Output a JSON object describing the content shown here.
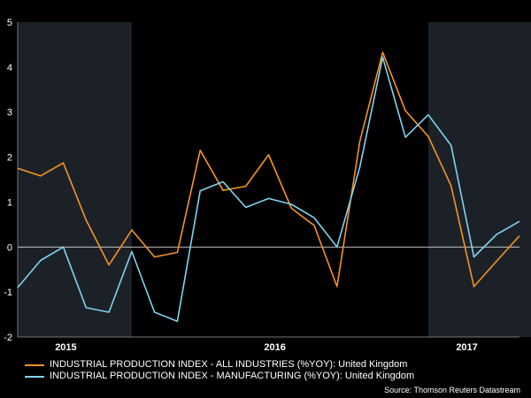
{
  "chart_data": {
    "type": "line",
    "y_ticks": [
      5,
      4,
      3,
      2,
      1,
      0,
      -1,
      -2
    ],
    "ylim": [
      -2,
      5
    ],
    "x_tick_labels": [
      "2015",
      "2016",
      "2017"
    ],
    "shaded_regions": [
      [
        0,
        5
      ],
      [
        18,
        23
      ]
    ],
    "grid": false,
    "series": [
      {
        "name": "INDUSTRIAL PRODUCTION INDEX - ALL INDUSTRIES (%YOY): United Kingdom",
        "color": "#f7941d",
        "values": [
          1.75,
          1.58,
          1.87,
          0.6,
          -0.4,
          0.38,
          -0.22,
          -0.12,
          2.15,
          1.26,
          1.35,
          2.05,
          0.86,
          0.48,
          -0.88,
          2.35,
          4.33,
          3.03,
          2.46,
          1.36,
          -0.88,
          -0.31,
          0.25
        ]
      },
      {
        "name": "INDUSTRIAL PRODUCTION INDEX - MANUFACTURING (%YOY): United Kingdom",
        "color": "#7fd4f0",
        "values": [
          -0.9,
          -0.3,
          0.0,
          -1.35,
          -1.45,
          -0.1,
          -1.45,
          -1.65,
          1.25,
          1.45,
          0.88,
          1.08,
          0.95,
          0.65,
          0.0,
          1.78,
          4.22,
          2.44,
          2.94,
          2.26,
          -0.22,
          0.28,
          0.57
        ]
      }
    ]
  },
  "legend": {
    "items": [
      {
        "label": "INDUSTRIAL PRODUCTION INDEX - ALL INDUSTRIES (%YOY): United Kingdom",
        "color": "#f7941d"
      },
      {
        "label": "INDUSTRIAL PRODUCTION INDEX - MANUFACTURING (%YOY): United Kingdom",
        "color": "#7fd4f0"
      }
    ]
  },
  "source": "Source: Thomson Reuters Datastream"
}
